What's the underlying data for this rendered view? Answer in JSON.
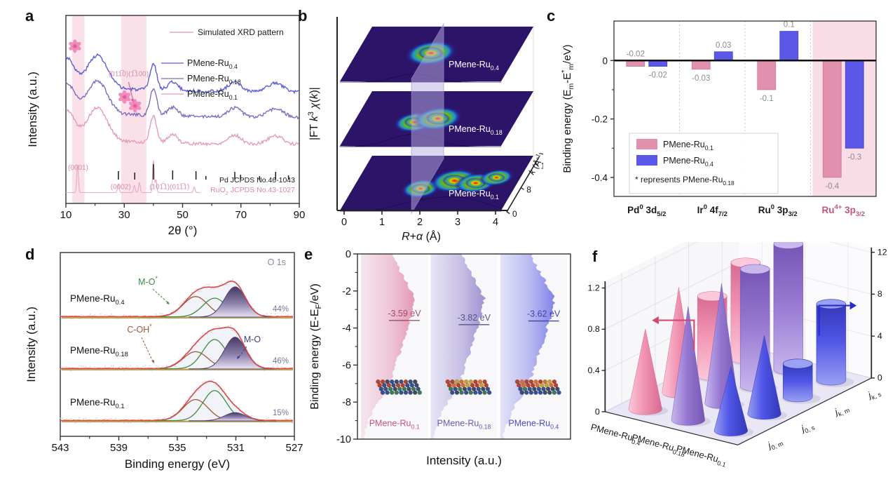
{
  "figure": {
    "bg": "#ffffff"
  },
  "panels": {
    "a": {
      "tag": "a"
    },
    "b": {
      "tag": "b"
    },
    "c": {
      "tag": "c"
    },
    "d": {
      "tag": "d"
    },
    "e": {
      "tag": "e"
    },
    "f": {
      "tag": "f"
    }
  },
  "chart_data": [
    {
      "panel": "a",
      "type": "line",
      "xlabel": "2θ (°)",
      "ylabel": "Intensity (a.u.)",
      "xlim": [
        10,
        90
      ],
      "xticks": [
        10,
        30,
        50,
        70,
        90
      ],
      "xticks_minor": [
        20,
        40,
        60,
        80
      ],
      "legend_simulated": "Simulated XRD pattern",
      "sim_color": "#e9a9bd",
      "series": [
        {
          "name": "PMene-Ru_{0.4}",
          "color": "#5c5cd9",
          "offset": 0.6
        },
        {
          "name": "PMene-Ru_{0.18}",
          "color": "#7e6cc0",
          "offset": 0.455
        },
        {
          "name": "PMene-Ru_{0.1}",
          "color": "#e59cb6",
          "offset": 0.3
        }
      ],
      "peak_profile": [
        {
          "c": 10.3,
          "w": 2.6,
          "a": 0.16
        },
        {
          "c": 20.8,
          "w": 3.4,
          "a": 0.185
        },
        {
          "c": 40.0,
          "w": 1.15,
          "a": 0.15
        },
        {
          "c": 46.6,
          "w": 1.7,
          "a": 0.05
        },
        {
          "c": 67.8,
          "w": 2.3,
          "a": 0.052
        },
        {
          "c": 81.8,
          "w": 2.7,
          "a": 0.05
        }
      ],
      "sim_sticks": [
        [
          14,
          40
        ],
        [
          28,
          12
        ],
        [
          33.5,
          10
        ],
        [
          35.2,
          14
        ],
        [
          40,
          46
        ],
        [
          40.9,
          18
        ],
        [
          54,
          8
        ]
      ],
      "pd_sticks": [
        [
          28,
          12
        ],
        [
          33.6,
          10
        ],
        [
          40,
          22
        ],
        [
          46.6,
          13
        ],
        [
          54.6,
          12
        ],
        [
          58,
          5
        ],
        [
          67.9,
          11
        ],
        [
          69.9,
          7
        ],
        [
          76.4,
          5
        ],
        [
          81.9,
          11
        ],
        [
          86.3,
          6
        ]
      ],
      "pd_label": "Pd JCPDS No.46-1043",
      "ruo2_label": "RuO_{2} JCPDS No.43-1027",
      "ruo2_color": "#d78ba6",
      "bands": [
        [
          12.2,
          16.4
        ],
        [
          29.0,
          37.6
        ]
      ],
      "band_color": "#f6d3e0",
      "hkl_labels": [
        {
          "text": "(0001)",
          "x": 14.2,
          "y": 0.16
        },
        {
          "text": "(0002)",
          "x": 28.8,
          "y": 0.05
        },
        {
          "text": "(101̅1)(011̅1)",
          "x": 45.5,
          "y": 0.05
        },
        {
          "text": "(011̅0)(1̅100)",
          "x": 31.5,
          "y": 0.695
        }
      ],
      "flowers": [
        [
          13.1,
          0.865
        ],
        [
          30.1,
          0.575
        ],
        [
          33.7,
          0.525
        ]
      ],
      "flower_color": "#ef83b7",
      "flower_core": "#e25f9e"
    },
    {
      "panel": "b",
      "type": "surface3d",
      "ylabel": "|FT ~k~^{3} ~χ~(~k~)|",
      "xlabel": "~R~+~α~ (Å)",
      "xlim": [
        0,
        4
      ],
      "xticks": [
        0,
        1,
        2,
        3,
        4
      ],
      "k_axis": {
        "label": "~k~ (Å^{-1})",
        "ticks": [
          0,
          8,
          16
        ]
      },
      "surfaces": [
        {
          "name": "PMene-Ru_{0.4}",
          "blobs": [
            {
              "r": 1.85,
              "d": 0.52,
              "s": 1.05
            }
          ]
        },
        {
          "name": "PMene-Ru_{0.18}",
          "blobs": [
            {
              "r": 1.5,
              "d": 0.42,
              "s": 0.85
            },
            {
              "r": 2.05,
              "d": 0.5,
              "s": 1.0
            }
          ]
        },
        {
          "name": "PMene-Ru_{0.1}",
          "blobs": [
            {
              "r": 1.7,
              "d": 0.38,
              "s": 0.8
            },
            {
              "r": 2.45,
              "d": 0.55,
              "s": 1.0
            },
            {
              "r": 3.05,
              "d": 0.5,
              "s": 0.85
            },
            {
              "r": 3.5,
              "d": 0.62,
              "s": 0.7
            }
          ]
        }
      ],
      "plane_r": 1.78,
      "surface_base": "#2c1468",
      "label_color": "#ffffff"
    },
    {
      "panel": "c",
      "type": "bar",
      "ylabel": "Binding energy (E_{m}-E^{*}_{m}/eV)",
      "ylim": [
        -0.465,
        0.135
      ],
      "yticks": [
        0,
        -0.2,
        -0.4
      ],
      "categories": [
        {
          "label": "Pd^{0} 3d_{5/2}",
          "color": "#1a1a1a",
          "highlight": false
        },
        {
          "label": "Ir^{0} 4f_{7/2}",
          "color": "#1a1a1a",
          "highlight": false
        },
        {
          "label": "Ru^{0} 3p_{3/2}",
          "color": "#1a1a1a",
          "highlight": false
        },
        {
          "label": "Ru^{4+} 3p_{3/2}",
          "color": "#c2557c",
          "highlight": true
        }
      ],
      "highlight_color": "#f8dde7",
      "series": [
        {
          "name": "PMene-Ru_{0.1}",
          "color": "#e190ae",
          "edge": "#c97a9a",
          "values": [
            -0.02,
            -0.03,
            -0.1,
            -0.4
          ]
        },
        {
          "name": "PMene-Ru_{0.4}",
          "color": "#5b57e8",
          "edge": "#4343c8",
          "values": [
            -0.02,
            0.03,
            0.1,
            -0.3
          ]
        }
      ],
      "value_labels": [
        [
          {
            "t": "-0.02",
            "side": "up"
          },
          {
            "t": "-0.02",
            "side": "down"
          }
        ],
        [
          {
            "t": "-0.03",
            "side": "down"
          },
          {
            "t": "0.03",
            "side": "up"
          }
        ],
        [
          {
            "t": "-0.1",
            "side": "down"
          },
          {
            "t": "0.1",
            "side": "up"
          }
        ],
        [
          {
            "t": "-0.4",
            "side": "down"
          },
          {
            "t": "-0.3",
            "side": "down"
          }
        ]
      ],
      "label_color": "#8c8c8c",
      "note": "* represents PMene-Ru_{0.18}"
    },
    {
      "panel": "d",
      "type": "xps",
      "xlabel": "Binding energy (eV)",
      "ylabel": "Intensity (a.u.)",
      "xlim": [
        543,
        527
      ],
      "xticks": [
        543,
        539,
        535,
        531,
        527
      ],
      "xticks_minor": [
        541,
        537,
        533,
        529
      ],
      "corner_label": "O 1s",
      "peak_centers": {
        "coh": 533.75,
        "mos": 532.45,
        "mo": 531.05
      },
      "colors": {
        "envelope": "#d64949",
        "coh": "#9b5a3c",
        "mos": "#3f8c3f",
        "mo_stroke": "#4a4270",
        "olive": "#b0a040",
        "orange": "#cc8040",
        "scatter": "#d9b8c2"
      },
      "spectra": [
        {
          "name": "PMene-Ru_{0.4}",
          "pct": "44%",
          "amps": {
            "coh": 0.5,
            "mos": 0.46,
            "mo": 0.74
          }
        },
        {
          "name": "PMene-Ru_{0.18}",
          "pct": "46%",
          "amps": {
            "coh": 0.42,
            "mos": 0.72,
            "mo": 0.78
          }
        },
        {
          "name": "PMene-Ru_{0.1}",
          "pct": "15%",
          "amps": {
            "coh": 0.52,
            "mos": 0.74,
            "mo": 0.2
          }
        }
      ],
      "annotations": [
        {
          "text": "M-O^{*}",
          "color": "#3f8c3f"
        },
        {
          "text": "C-OH^{*}",
          "color": "#9b5a3c"
        },
        {
          "text": "M-O",
          "color": "#3a3f85"
        }
      ],
      "pct_color": "#76769a"
    },
    {
      "panel": "e",
      "type": "vband",
      "ylabel": "Binding energy (E-E_{F}/eV)",
      "xlabel": "Intensity (a.u.)",
      "yticks": [
        0,
        -2,
        -4,
        -6,
        -8,
        -10
      ],
      "ylim": [
        0,
        -10
      ],
      "bands": [
        {
          "name": "PMene-Ru_{0.1}",
          "color": "#e087a8",
          "text_color": "#c4537e",
          "marker": "-3.59 eV",
          "center": -3.59,
          "marker_color": "#a84a66"
        },
        {
          "name": "PMene-Ru_{0.18}",
          "color": "#8d7cc9",
          "text_color": "#6b5aa8",
          "marker": "-3.82 eV",
          "center": -3.82,
          "marker_color": "#5a5488"
        },
        {
          "name": "PMene-Ru_{0.4}",
          "color": "#6b6ce4",
          "text_color": "#4a4cc0",
          "marker": "-3.62 eV",
          "center": -3.62,
          "marker_color": "#4444a8"
        }
      ],
      "profile": [
        [
          0,
          0.5
        ],
        [
          -0.8,
          0.62
        ],
        [
          -1.6,
          0.75
        ],
        [
          -2.4,
          0.88
        ],
        [
          -3.0,
          0.85
        ],
        [
          -3.6,
          0.8
        ],
        [
          -4.5,
          0.72
        ],
        [
          -5.5,
          0.62
        ],
        [
          -6.5,
          0.52
        ],
        [
          -7.5,
          0.38
        ],
        [
          -8.3,
          0.22
        ],
        [
          -9.0,
          0.12
        ],
        [
          -10,
          0.04
        ]
      ]
    },
    {
      "panel": "f",
      "type": "bar3d",
      "left_axis": {
        "ticks": [
          0,
          0.4,
          0.8,
          1.2
        ],
        "max": 1.2,
        "arrow_color": "#d04a6e"
      },
      "right_axis": {
        "ticks": [
          0,
          4,
          8,
          12
        ],
        "max": 12,
        "arrow_color": "#2a2ad0"
      },
      "depth_labels": [
        "~j~_{0, m}",
        "~j~_{0, s}",
        "~j~_{k, m}",
        "~j~_{k, s}"
      ],
      "rows": [
        {
          "name": "PMene-Ru_{0.4}",
          "color": "#f194b2",
          "light": "#fbc9d9",
          "dark": "#d86a92",
          "cones": [
            0.78,
            1.02
          ],
          "cylinders": [
            7.6,
            9.2
          ]
        },
        {
          "name": "PMene-Ru_{0.18}",
          "color": "#9678d2",
          "light": "#c9b8ec",
          "dark": "#7656b4",
          "cones": [
            1.1,
            1.16
          ],
          "cylinders": [
            11.2,
            12.0
          ]
        },
        {
          "name": "PMene-Ru_{0.1}",
          "color": "#4f55e6",
          "light": "#9aa0f2",
          "dark": "#3438b8",
          "cones": [
            0.62,
            0.76
          ],
          "cylinders": [
            3.2,
            7.3
          ]
        }
      ],
      "floor_color": "#e9e6f5",
      "wall_color": "#f7f7fa"
    }
  ]
}
